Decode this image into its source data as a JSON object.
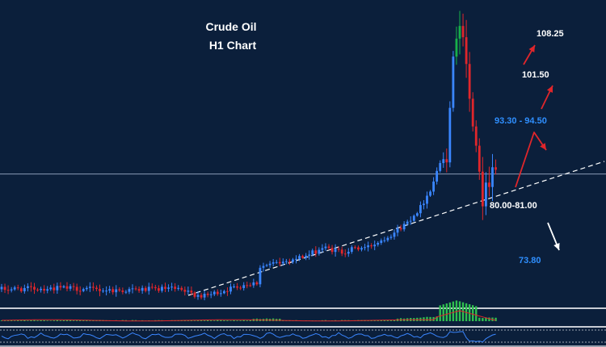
{
  "chart_data": {
    "type": "candlestick",
    "title": "Crude Oil",
    "subtitle": "H1  Chart",
    "colors": {
      "background": "#0b1f3b",
      "bull": "#3a86ff",
      "bull_spike": "#17b04a",
      "bear": "#e0262b",
      "trendline": "#ffffff",
      "hline": "#8a9bb5",
      "macd_hist_pos": "#2fbf4f",
      "macd_signal": "#e0262b",
      "rsi_line": "#3a86ff",
      "panel_border": "#c8ccd4"
    },
    "levels": [
      {
        "label": "108.25",
        "color": "white"
      },
      {
        "label": "101.50",
        "color": "white"
      },
      {
        "label": "93.30 - 94.50",
        "color": "blue"
      },
      {
        "label": "80.00-81.00",
        "color": "white"
      },
      {
        "label": "73.80",
        "color": "blue"
      }
    ],
    "horizontal_line": 86.6,
    "ylim": [
      64,
      114
    ],
    "trendline": {
      "start": [
        0,
        64.9
      ],
      "end": [
        146,
        88.0
      ]
    },
    "anchors": [
      [
        0,
        67.2
      ],
      [
        18,
        67.4
      ],
      [
        36,
        67.0
      ],
      [
        52,
        67.3
      ],
      [
        58,
        66.5
      ],
      [
        62,
        66.0
      ],
      [
        68,
        67.0
      ],
      [
        74,
        68.0
      ],
      [
        78,
        68.3
      ],
      [
        79,
        71.0
      ],
      [
        86,
        71.8
      ],
      [
        94,
        73.0
      ],
      [
        98,
        74.2
      ],
      [
        104,
        73.5
      ],
      [
        108,
        74.0
      ],
      [
        112,
        74.3
      ],
      [
        116,
        75.5
      ],
      [
        120,
        76.8
      ],
      [
        124,
        78.5
      ],
      [
        128,
        81.0
      ],
      [
        131,
        84.0
      ],
      [
        134,
        88.5
      ],
      [
        135,
        89.5
      ],
      [
        136,
        89.0
      ],
      [
        137,
        99.0
      ],
      [
        138,
        105.0
      ],
      [
        139,
        110.5
      ],
      [
        140,
        112.5
      ],
      [
        141,
        110.0
      ],
      [
        142,
        104.0
      ],
      [
        143,
        99.0
      ],
      [
        144,
        95.0
      ],
      [
        145,
        91.5
      ],
      [
        146,
        86.0
      ],
      [
        147,
        80.5
      ],
      [
        148,
        84.5
      ],
      [
        149,
        83.5
      ],
      [
        150,
        87.0
      ],
      [
        151,
        88.0
      ]
    ]
  }
}
